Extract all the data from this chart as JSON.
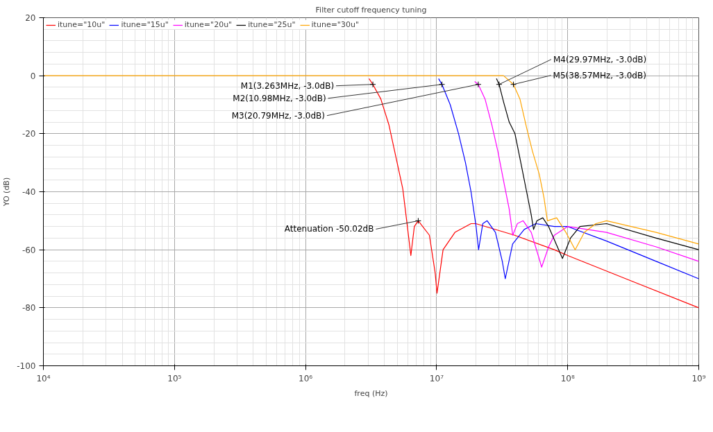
{
  "chart_data": {
    "type": "line",
    "title": "Filter cutoff frequency tuning",
    "xlabel": "freq (Hz)",
    "ylabel": "YO (dB)",
    "log": "x",
    "grid": true,
    "legend": "top left",
    "xlim": [
      10000,
      1000000000
    ],
    "ylim": [
      -100,
      20
    ],
    "xticks": [
      {
        "value": 10000,
        "label": "10⁴"
      },
      {
        "value": 100000,
        "label": "10⁵"
      },
      {
        "value": 1000000,
        "label": "10⁶"
      },
      {
        "value": 10000000,
        "label": "10⁷"
      },
      {
        "value": 100000000,
        "label": "10⁸"
      },
      {
        "value": 1000000000,
        "label": "10⁹"
      }
    ],
    "yticks": [
      20,
      0,
      -20,
      -40,
      -60,
      -80,
      -100
    ],
    "series": [
      {
        "name": "itune=\"10u\"",
        "color": "#ff0000",
        "x": [
          3050000.0,
          3263000.0,
          3750000.0,
          4330000.0,
          4890000.0,
          5520000.0,
          5910000.0,
          6360000.0,
          6760000.0,
          7240000.0,
          8810000.0,
          9750000.0,
          10070000.0,
          11200000.0,
          13800000.0,
          18300000.0,
          19900000.0,
          39400000.0,
          79000000.0,
          100000000.0,
          316000000.0,
          1000000000.0
        ],
        "values": [
          -1,
          -3,
          -8,
          -17,
          -28,
          -39,
          -50,
          -62,
          -52,
          -50,
          -55,
          -68,
          -75,
          -60,
          -54,
          -51,
          -51,
          -55,
          -60,
          -62,
          -71,
          -80
        ]
      },
      {
        "name": "itune=\"15u\"",
        "color": "#0000ff",
        "x": [
          10350000.0,
          10980000.0,
          12700000.0,
          14700000.0,
          16600000.0,
          18300000.0,
          20000000.0,
          20900000.0,
          22500000.0,
          24300000.0,
          28100000.0,
          31700000.0,
          33400000.0,
          38000000.0,
          46600000.0,
          57100000.0,
          79000000.0,
          100000000.0,
          198000000.0,
          473000000.0,
          1000000000.0
        ],
        "values": [
          -1,
          -3,
          -10,
          -20,
          -30,
          -40,
          -52,
          -60,
          -51,
          -50,
          -54,
          -64,
          -70,
          -58,
          -53,
          -51,
          -52,
          -52,
          -57,
          -64,
          -70
        ]
      },
      {
        "name": "itune=\"20u\"",
        "color": "#ff00ff",
        "x": [
          19500000.0,
          20790000.0,
          23400000.0,
          26400000.0,
          29300000.0,
          33000000.0,
          35800000.0,
          38100000.0,
          41300000.0,
          45700000.0,
          52700000.0,
          59600000.0,
          63300000.0,
          71500000.0,
          79000000.0,
          100000000.0,
          198000000.0,
          473000000.0,
          1000000000.0
        ],
        "values": [
          -2,
          -3,
          -8,
          -17,
          -26,
          -38,
          -46,
          -55,
          -51,
          -50,
          -54,
          -62,
          -66,
          -59,
          -55,
          -52,
          -54,
          -59,
          -64
        ]
      },
      {
        "name": "itune=\"25u\"",
        "color": "#000000",
        "x": [
          28600000.0,
          29970000.0,
          32400000.0,
          35800000.0,
          39600000.0,
          43900000.0,
          48600000.0,
          52700000.0,
          54900000.0,
          58300000.0,
          64600000.0,
          71500000.0,
          91200000.0,
          105000000.0,
          124000000.0,
          198000000.0,
          473000000.0,
          1000000000.0
        ],
        "values": [
          -1,
          -3,
          -9,
          -16,
          -20,
          -30,
          -40,
          -48,
          -53,
          -50,
          -49,
          -52,
          -63,
          -56,
          -52,
          -51,
          -56,
          -60
        ]
      },
      {
        "name": "itune=\"30u\"",
        "color": "#ffa500",
        "x": [
          10000.0,
          32400000.0,
          38570000.0,
          43200000.0,
          48600000.0,
          53800000.0,
          60700000.0,
          65900000.0,
          70000000.0,
          82400000.0,
          96900000.0,
          114000000.0,
          134000000.0,
          164000000.0,
          198000000.0,
          473000000.0,
          1000000000.0
        ],
        "values": [
          0,
          0,
          -3,
          -8,
          -18,
          -26,
          -34,
          -42,
          -50,
          -49,
          -54,
          -60,
          -54,
          -51,
          -50,
          -54,
          -58
        ]
      }
    ],
    "annotations": [
      {
        "text": "M1(3.263MHz, -3.0dB)",
        "x": 3263000,
        "y": -3
      },
      {
        "text": "M2(10.98MHz, -3.0dB)",
        "x": 10980000,
        "y": -3
      },
      {
        "text": "M3(20.79MHz, -3.0dB)",
        "x": 20790000,
        "y": -3
      },
      {
        "text": "M4(29.97MHz, -3.0dB)",
        "x": 29970000,
        "y": -3
      },
      {
        "text": "M5(38.57MHz, -3.0dB)",
        "x": 38570000,
        "y": -3
      },
      {
        "text": "Attenuation -50.02dB",
        "x": 7240000,
        "y": -50.02
      }
    ]
  }
}
